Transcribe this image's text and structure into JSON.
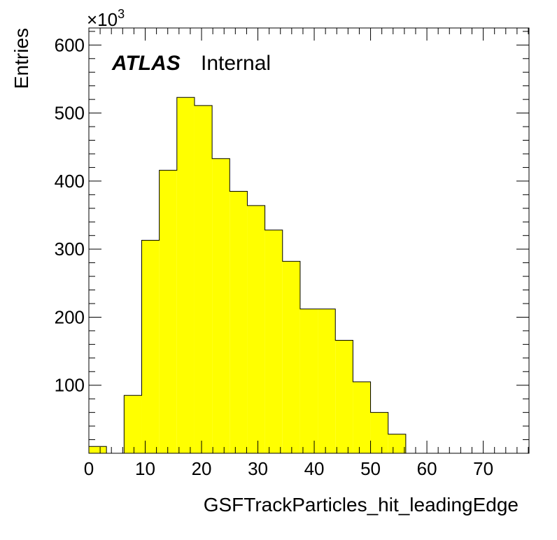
{
  "chart_data": {
    "type": "bar",
    "bin_edges": [
      0,
      3.125,
      6.25,
      9.375,
      12.5,
      15.625,
      18.75,
      21.875,
      25,
      28.125,
      31.25,
      34.375,
      37.5,
      40.625,
      43.75,
      46.875,
      50,
      53.125,
      56.25,
      59.375,
      62.5,
      65.625,
      68.75,
      71.875,
      75,
      78.125
    ],
    "values": [
      10,
      0,
      85,
      313,
      416,
      523,
      511,
      433,
      385,
      364,
      328,
      282,
      212,
      212,
      166,
      105,
      60,
      28,
      0,
      0,
      0,
      0,
      0,
      0,
      0
    ],
    "fill_color": "#ffff00",
    "line_color": "#000000",
    "xlabel": "GSFTrackParticles_hit_leadingEdge",
    "ylabel": "Entries",
    "y_multiplier": "×10",
    "y_multiplier_exponent": "3",
    "xlim": [
      0,
      78.125
    ],
    "ylim": [
      0,
      625
    ],
    "x_ticks": [
      0,
      10,
      20,
      30,
      40,
      50,
      60,
      70
    ],
    "y_ticks": [
      100,
      200,
      300,
      400,
      500,
      600
    ],
    "grid": false,
    "legend": null
  },
  "label": {
    "experiment": "ATLAS",
    "status": "Internal"
  }
}
